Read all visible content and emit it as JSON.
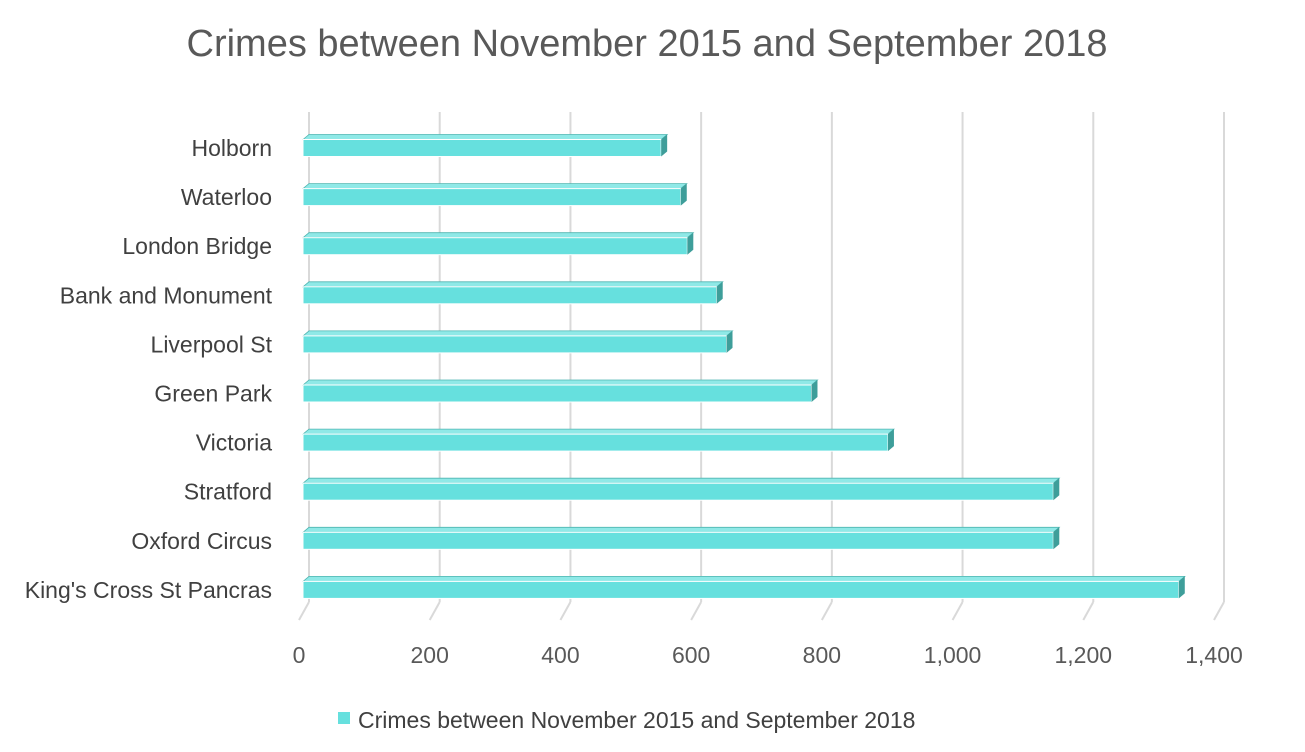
{
  "chart_data": {
    "type": "bar",
    "orientation": "horizontal",
    "title": "Crimes between November 2015 and September 2018",
    "categories": [
      "Holborn",
      "Waterloo",
      "London Bridge",
      "Bank and Monument",
      "Liverpool St",
      "Green Park",
      "Victoria",
      "Stratford",
      "Oxford Circus",
      "King's Cross St Pancras"
    ],
    "series": [
      {
        "name": "Crimes between November 2015 and September 2018",
        "values": [
          548,
          578,
          588,
          633,
          648,
          778,
          895,
          1148,
          1148,
          1340
        ],
        "color": "#66E0DE"
      }
    ],
    "xlim": [
      0,
      1400
    ],
    "ticks": [
      "0",
      "200",
      "400",
      "600",
      "800",
      "1,000",
      "1,200",
      "1,400"
    ],
    "tick_values": [
      0,
      200,
      400,
      600,
      800,
      1000,
      1200,
      1400
    ],
    "grid": true,
    "legend": "bottom",
    "colors": {
      "bar_front": "#66E0DE",
      "bar_top": "#8FE9E7",
      "bar_side": "#3E9E9A",
      "grid": "#D9D9D9"
    }
  }
}
